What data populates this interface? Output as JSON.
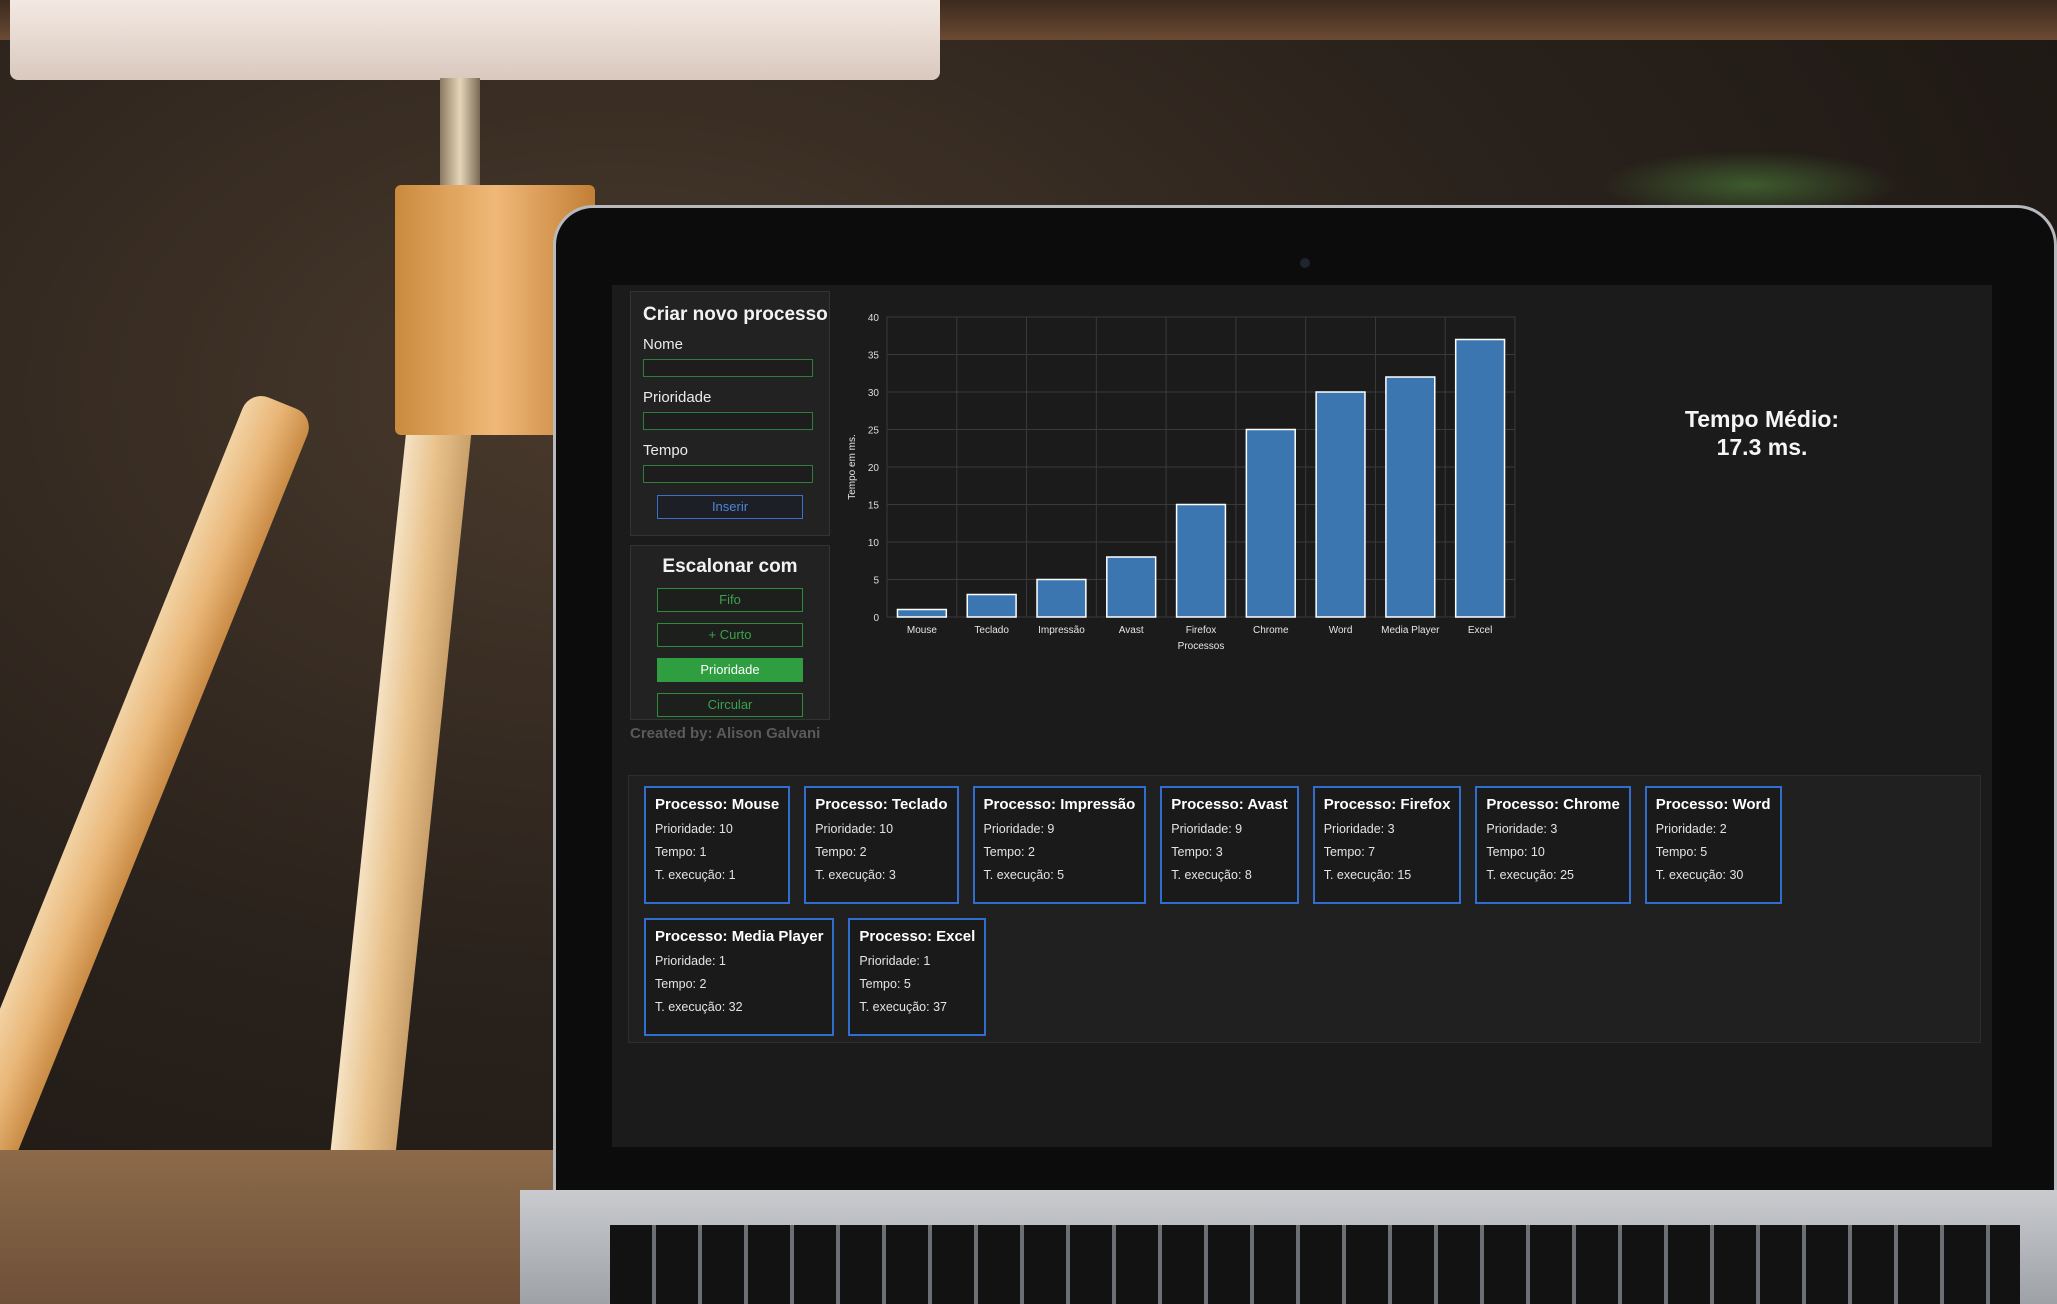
{
  "create_form": {
    "title": "Criar novo processo",
    "name_label": "Nome",
    "priority_label": "Prioridade",
    "time_label": "Tempo",
    "insert_label": "Inserir"
  },
  "schedule": {
    "title": "Escalonar com",
    "options": [
      "Fifo",
      "+ Curto",
      "Prioridade",
      "Circular"
    ],
    "active": "Prioridade"
  },
  "credit": "Created by: Alison Galvani",
  "average": {
    "label": "Tempo Médio:",
    "value": "17.3 ms."
  },
  "colors": {
    "accent_green": "#2e9e40",
    "accent_blue": "#2f6ecf",
    "bar_blue": "#3b76b0"
  },
  "chart_data": {
    "type": "bar",
    "categories": [
      "Mouse",
      "Teclado",
      "Impressão",
      "Avast",
      "Firefox",
      "Chrome",
      "Word",
      "Media Player",
      "Excel"
    ],
    "values": [
      1,
      3,
      5,
      8,
      15,
      25,
      30,
      32,
      37
    ],
    "xlabel": "Processos",
    "ylabel": "Tempo em ms.",
    "ylim": [
      0,
      40
    ],
    "yticks": [
      0,
      5,
      10,
      15,
      20,
      25,
      30,
      35,
      40
    ],
    "grid": true
  },
  "processes": [
    {
      "title": "Processo: Mouse",
      "priority": "Prioridade: 10",
      "time": "Tempo: 1",
      "exec": "T. execução: 1"
    },
    {
      "title": "Processo: Teclado",
      "priority": "Prioridade: 10",
      "time": "Tempo: 2",
      "exec": "T. execução: 3"
    },
    {
      "title": "Processo: Impressão",
      "priority": "Prioridade: 9",
      "time": "Tempo: 2",
      "exec": "T. execução: 5"
    },
    {
      "title": "Processo: Avast",
      "priority": "Prioridade: 9",
      "time": "Tempo: 3",
      "exec": "T. execução: 8"
    },
    {
      "title": "Processo: Firefox",
      "priority": "Prioridade: 3",
      "time": "Tempo: 7",
      "exec": "T. execução: 15"
    },
    {
      "title": "Processo: Chrome",
      "priority": "Prioridade: 3",
      "time": "Tempo: 10",
      "exec": "T. execução: 25"
    },
    {
      "title": "Processo: Word",
      "priority": "Prioridade: 2",
      "time": "Tempo: 5",
      "exec": "T. execução: 30"
    },
    {
      "title": "Processo: Media Player",
      "priority": "Prioridade: 1",
      "time": "Tempo: 2",
      "exec": "T. execução: 32"
    },
    {
      "title": "Processo: Excel",
      "priority": "Prioridade: 1",
      "time": "Tempo: 5",
      "exec": "T. execução: 37"
    }
  ]
}
